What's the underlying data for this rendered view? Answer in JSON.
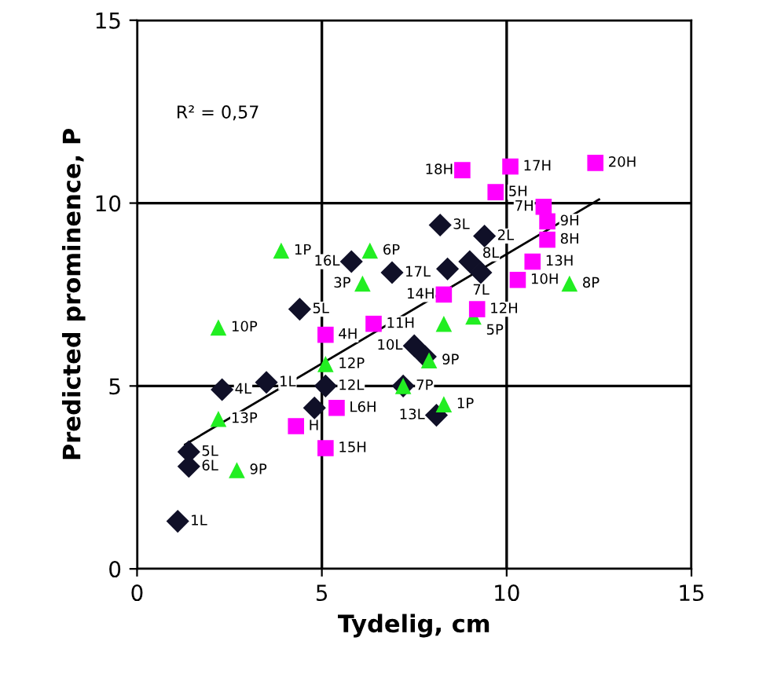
{
  "chart_data": {
    "type": "scatter",
    "xlabel": "Tydelig, cm",
    "ylabel": "Predicted prominence, P",
    "xlim": [
      0,
      15
    ],
    "ylim": [
      0,
      15
    ],
    "xticks": [
      0,
      5,
      10,
      15
    ],
    "yticks": [
      0,
      5,
      10,
      15
    ],
    "grid": true,
    "series": [
      {
        "marker": "diamond",
        "color": "#101028",
        "x": [
          1.1,
          1.4,
          1.4,
          2.3,
          3.5,
          5.1,
          4.8,
          5.8,
          6.9,
          4.4,
          8.2,
          9.4,
          8.4,
          9.0,
          9.3,
          7.5,
          7.8,
          7.2,
          8.1
        ],
        "values": [
          1.3,
          3.2,
          2.8,
          4.9,
          5.1,
          5.0,
          4.4,
          8.4,
          8.1,
          7.1,
          9.4,
          9.1,
          8.2,
          8.4,
          8.1,
          6.1,
          5.8,
          5.0,
          4.2
        ]
      },
      {
        "marker": "triangle",
        "color": "#22ee22",
        "x": [
          3.9,
          6.3,
          6.1,
          2.2,
          5.1,
          2.2,
          2.7,
          11.7,
          8.3,
          7.9,
          7.2,
          8.3,
          9.1
        ],
        "values": [
          8.7,
          8.7,
          7.8,
          6.6,
          5.6,
          4.1,
          2.7,
          7.8,
          6.7,
          5.7,
          5.0,
          4.5,
          6.9
        ]
      },
      {
        "marker": "square",
        "color": "#ff00ff",
        "x": [
          8.8,
          10.1,
          12.4,
          9.7,
          11.0,
          11.1,
          11.1,
          10.7,
          10.3,
          8.3,
          9.2,
          6.4,
          5.1,
          5.4,
          4.3,
          5.1
        ],
        "values": [
          10.9,
          11.0,
          11.1,
          10.3,
          9.9,
          9.5,
          9.0,
          8.4,
          7.9,
          7.5,
          7.1,
          6.7,
          6.4,
          4.4,
          3.9,
          3.3
        ]
      },
      {
        "type": "line",
        "color": "#000000",
        "x": [
          1.3,
          12.5
        ],
        "values": [
          3.4,
          10.1
        ]
      }
    ],
    "annotations": [
      "R² = 0,57",
      {
        "text": "1L",
        "x": 1.1,
        "y": 1.3
      },
      {
        "text": "5L",
        "x": 1.4,
        "y": 3.2
      },
      {
        "text": "6L",
        "x": 1.4,
        "y": 2.8
      },
      {
        "text": "4L",
        "x": 2.3,
        "y": 4.9
      },
      {
        "text": "1L",
        "x": 3.5,
        "y": 5.1
      },
      {
        "text": "12L",
        "x": 5.1,
        "y": 5.0
      },
      {
        "text": "16L",
        "x": 5.8,
        "y": 8.4
      },
      {
        "text": "17L",
        "x": 6.9,
        "y": 8.1
      },
      {
        "text": "5L",
        "x": 4.4,
        "y": 7.1
      },
      {
        "text": "3L",
        "x": 8.2,
        "y": 9.4
      },
      {
        "text": "2L",
        "x": 9.4,
        "y": 9.1
      },
      {
        "text": "8L",
        "x": 9.0,
        "y": 8.4
      },
      {
        "text": "7L",
        "x": 9.3,
        "y": 8.1
      },
      {
        "text": "10L",
        "x": 7.5,
        "y": 6.1
      },
      {
        "text": "13L",
        "x": 8.1,
        "y": 4.2
      },
      {
        "text": "1P",
        "x": 3.9,
        "y": 8.7
      },
      {
        "text": "6P",
        "x": 6.3,
        "y": 8.7
      },
      {
        "text": "3P",
        "x": 6.1,
        "y": 7.8
      },
      {
        "text": "10P",
        "x": 2.2,
        "y": 6.6
      },
      {
        "text": "12P",
        "x": 5.1,
        "y": 5.6
      },
      {
        "text": "13P",
        "x": 2.2,
        "y": 4.1
      },
      {
        "text": "9P",
        "x": 2.7,
        "y": 2.7
      },
      {
        "text": "8P",
        "x": 11.7,
        "y": 7.8
      },
      {
        "text": "5P",
        "x": 9.1,
        "y": 6.9
      },
      {
        "text": "9P",
        "x": 7.9,
        "y": 5.7
      },
      {
        "text": "7P",
        "x": 7.2,
        "y": 5.0
      },
      {
        "text": "1P",
        "x": 8.3,
        "y": 4.5
      },
      {
        "text": "18H",
        "x": 8.8,
        "y": 10.9
      },
      {
        "text": "17H",
        "x": 10.1,
        "y": 11.0
      },
      {
        "text": "20H",
        "x": 12.4,
        "y": 11.1
      },
      {
        "text": "5H",
        "x": 9.7,
        "y": 10.3
      },
      {
        "text": "7H",
        "x": 11.0,
        "y": 9.9
      },
      {
        "text": "9H",
        "x": 11.1,
        "y": 9.5
      },
      {
        "text": "8H",
        "x": 11.1,
        "y": 9.0
      },
      {
        "text": "13H",
        "x": 10.7,
        "y": 8.4
      },
      {
        "text": "10H",
        "x": 10.3,
        "y": 7.9
      },
      {
        "text": "14H",
        "x": 8.3,
        "y": 7.5
      },
      {
        "text": "12H",
        "x": 9.2,
        "y": 7.1
      },
      {
        "text": "11H",
        "x": 6.4,
        "y": 6.7
      },
      {
        "text": "4H",
        "x": 5.1,
        "y": 6.4
      },
      {
        "text": "L6H",
        "x": 5.4,
        "y": 4.4
      },
      {
        "text": "H",
        "x": 4.3,
        "y": 3.9
      },
      {
        "text": "15H",
        "x": 5.1,
        "y": 3.3
      }
    ]
  }
}
